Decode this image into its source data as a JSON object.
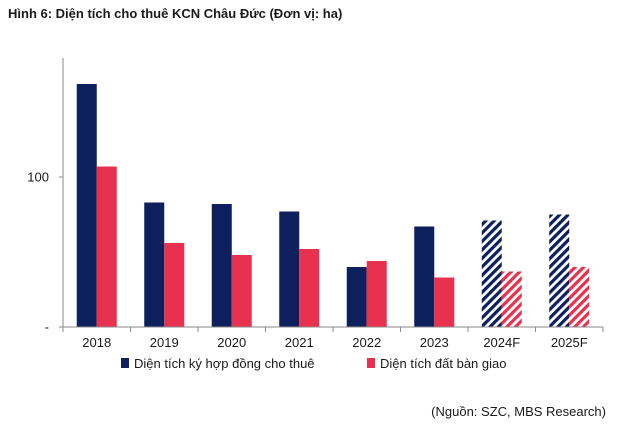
{
  "title": "Hình 6: Diện tích cho thuê KCN Châu Đức (Đơn vị: ha)",
  "source": "(Nguồn: SZC, MBS Research)",
  "chart_data": {
    "type": "bar",
    "categories": [
      "2018",
      "2019",
      "2020",
      "2021",
      "2022",
      "2023",
      "2024F",
      "2025F"
    ],
    "series": [
      {
        "name": "Diện tích ký hợp đồng cho thuê",
        "color": "#0d1f5c",
        "values": [
          162,
          83,
          82,
          77,
          40,
          67,
          71,
          75
        ],
        "hatched": [
          false,
          false,
          false,
          false,
          false,
          false,
          true,
          true
        ]
      },
      {
        "name": "Diện tích đất bàn giao",
        "color": "#e8304f",
        "values": [
          107,
          56,
          48,
          52,
          44,
          33,
          37,
          40
        ],
        "hatched": [
          false,
          false,
          false,
          false,
          false,
          false,
          true,
          true
        ]
      }
    ],
    "yticks": [
      {
        "value": 0,
        "label": "-"
      },
      {
        "value": 100,
        "label": "100"
      }
    ],
    "ylim": [
      0,
      180
    ],
    "legend_position": "bottom",
    "grid": false
  }
}
